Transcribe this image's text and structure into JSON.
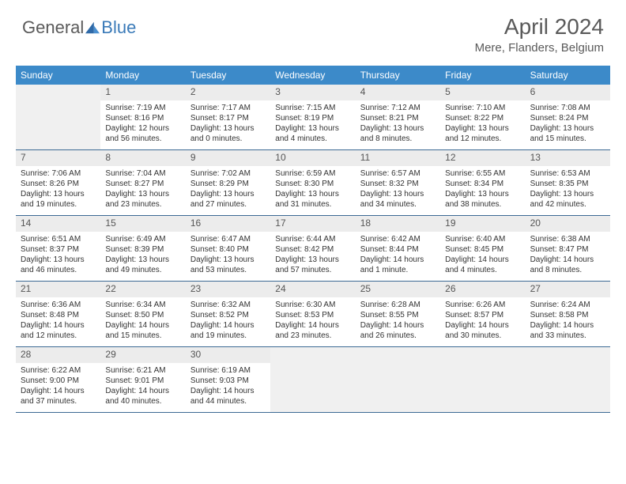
{
  "logo": {
    "part1": "General",
    "part2": "Blue"
  },
  "title": "April 2024",
  "location": "Mere, Flanders, Belgium",
  "colors": {
    "header_bg": "#3c8ac9",
    "header_text": "#ffffff",
    "daynum_bg": "#ececec",
    "border": "#3c6a94",
    "logo_gray": "#5a5a5a",
    "logo_blue": "#3a7ab8"
  },
  "day_names": [
    "Sunday",
    "Monday",
    "Tuesday",
    "Wednesday",
    "Thursday",
    "Friday",
    "Saturday"
  ],
  "weeks": [
    [
      null,
      {
        "n": "1",
        "sr": "Sunrise: 7:19 AM",
        "ss": "Sunset: 8:16 PM",
        "d1": "Daylight: 12 hours",
        "d2": "and 56 minutes."
      },
      {
        "n": "2",
        "sr": "Sunrise: 7:17 AM",
        "ss": "Sunset: 8:17 PM",
        "d1": "Daylight: 13 hours",
        "d2": "and 0 minutes."
      },
      {
        "n": "3",
        "sr": "Sunrise: 7:15 AM",
        "ss": "Sunset: 8:19 PM",
        "d1": "Daylight: 13 hours",
        "d2": "and 4 minutes."
      },
      {
        "n": "4",
        "sr": "Sunrise: 7:12 AM",
        "ss": "Sunset: 8:21 PM",
        "d1": "Daylight: 13 hours",
        "d2": "and 8 minutes."
      },
      {
        "n": "5",
        "sr": "Sunrise: 7:10 AM",
        "ss": "Sunset: 8:22 PM",
        "d1": "Daylight: 13 hours",
        "d2": "and 12 minutes."
      },
      {
        "n": "6",
        "sr": "Sunrise: 7:08 AM",
        "ss": "Sunset: 8:24 PM",
        "d1": "Daylight: 13 hours",
        "d2": "and 15 minutes."
      }
    ],
    [
      {
        "n": "7",
        "sr": "Sunrise: 7:06 AM",
        "ss": "Sunset: 8:26 PM",
        "d1": "Daylight: 13 hours",
        "d2": "and 19 minutes."
      },
      {
        "n": "8",
        "sr": "Sunrise: 7:04 AM",
        "ss": "Sunset: 8:27 PM",
        "d1": "Daylight: 13 hours",
        "d2": "and 23 minutes."
      },
      {
        "n": "9",
        "sr": "Sunrise: 7:02 AM",
        "ss": "Sunset: 8:29 PM",
        "d1": "Daylight: 13 hours",
        "d2": "and 27 minutes."
      },
      {
        "n": "10",
        "sr": "Sunrise: 6:59 AM",
        "ss": "Sunset: 8:30 PM",
        "d1": "Daylight: 13 hours",
        "d2": "and 31 minutes."
      },
      {
        "n": "11",
        "sr": "Sunrise: 6:57 AM",
        "ss": "Sunset: 8:32 PM",
        "d1": "Daylight: 13 hours",
        "d2": "and 34 minutes."
      },
      {
        "n": "12",
        "sr": "Sunrise: 6:55 AM",
        "ss": "Sunset: 8:34 PM",
        "d1": "Daylight: 13 hours",
        "d2": "and 38 minutes."
      },
      {
        "n": "13",
        "sr": "Sunrise: 6:53 AM",
        "ss": "Sunset: 8:35 PM",
        "d1": "Daylight: 13 hours",
        "d2": "and 42 minutes."
      }
    ],
    [
      {
        "n": "14",
        "sr": "Sunrise: 6:51 AM",
        "ss": "Sunset: 8:37 PM",
        "d1": "Daylight: 13 hours",
        "d2": "and 46 minutes."
      },
      {
        "n": "15",
        "sr": "Sunrise: 6:49 AM",
        "ss": "Sunset: 8:39 PM",
        "d1": "Daylight: 13 hours",
        "d2": "and 49 minutes."
      },
      {
        "n": "16",
        "sr": "Sunrise: 6:47 AM",
        "ss": "Sunset: 8:40 PM",
        "d1": "Daylight: 13 hours",
        "d2": "and 53 minutes."
      },
      {
        "n": "17",
        "sr": "Sunrise: 6:44 AM",
        "ss": "Sunset: 8:42 PM",
        "d1": "Daylight: 13 hours",
        "d2": "and 57 minutes."
      },
      {
        "n": "18",
        "sr": "Sunrise: 6:42 AM",
        "ss": "Sunset: 8:44 PM",
        "d1": "Daylight: 14 hours",
        "d2": "and 1 minute."
      },
      {
        "n": "19",
        "sr": "Sunrise: 6:40 AM",
        "ss": "Sunset: 8:45 PM",
        "d1": "Daylight: 14 hours",
        "d2": "and 4 minutes."
      },
      {
        "n": "20",
        "sr": "Sunrise: 6:38 AM",
        "ss": "Sunset: 8:47 PM",
        "d1": "Daylight: 14 hours",
        "d2": "and 8 minutes."
      }
    ],
    [
      {
        "n": "21",
        "sr": "Sunrise: 6:36 AM",
        "ss": "Sunset: 8:48 PM",
        "d1": "Daylight: 14 hours",
        "d2": "and 12 minutes."
      },
      {
        "n": "22",
        "sr": "Sunrise: 6:34 AM",
        "ss": "Sunset: 8:50 PM",
        "d1": "Daylight: 14 hours",
        "d2": "and 15 minutes."
      },
      {
        "n": "23",
        "sr": "Sunrise: 6:32 AM",
        "ss": "Sunset: 8:52 PM",
        "d1": "Daylight: 14 hours",
        "d2": "and 19 minutes."
      },
      {
        "n": "24",
        "sr": "Sunrise: 6:30 AM",
        "ss": "Sunset: 8:53 PM",
        "d1": "Daylight: 14 hours",
        "d2": "and 23 minutes."
      },
      {
        "n": "25",
        "sr": "Sunrise: 6:28 AM",
        "ss": "Sunset: 8:55 PM",
        "d1": "Daylight: 14 hours",
        "d2": "and 26 minutes."
      },
      {
        "n": "26",
        "sr": "Sunrise: 6:26 AM",
        "ss": "Sunset: 8:57 PM",
        "d1": "Daylight: 14 hours",
        "d2": "and 30 minutes."
      },
      {
        "n": "27",
        "sr": "Sunrise: 6:24 AM",
        "ss": "Sunset: 8:58 PM",
        "d1": "Daylight: 14 hours",
        "d2": "and 33 minutes."
      }
    ],
    [
      {
        "n": "28",
        "sr": "Sunrise: 6:22 AM",
        "ss": "Sunset: 9:00 PM",
        "d1": "Daylight: 14 hours",
        "d2": "and 37 minutes."
      },
      {
        "n": "29",
        "sr": "Sunrise: 6:21 AM",
        "ss": "Sunset: 9:01 PM",
        "d1": "Daylight: 14 hours",
        "d2": "and 40 minutes."
      },
      {
        "n": "30",
        "sr": "Sunrise: 6:19 AM",
        "ss": "Sunset: 9:03 PM",
        "d1": "Daylight: 14 hours",
        "d2": "and 44 minutes."
      },
      null,
      null,
      null,
      null
    ]
  ]
}
